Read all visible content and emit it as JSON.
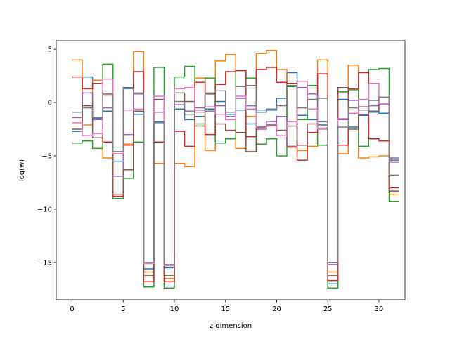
{
  "chart_data": {
    "type": "line",
    "step": "post",
    "xlabel": "z dimension",
    "ylabel": "log(w)",
    "xlim": [
      -1.55,
      32.55
    ],
    "ylim": [
      -18.5,
      5.8
    ],
    "xticks": [
      0,
      5,
      10,
      15,
      20,
      25,
      30
    ],
    "yticks": [
      5,
      0,
      -5,
      -10,
      -15
    ],
    "ytick_labels": [
      "5",
      "0",
      "−5",
      "−10",
      "−15"
    ],
    "grid": false,
    "legend": "none",
    "x": [
      0,
      1,
      2,
      3,
      4,
      5,
      6,
      7,
      8,
      9,
      10,
      11,
      12,
      13,
      14,
      15,
      16,
      17,
      18,
      19,
      20,
      21,
      22,
      23,
      24,
      25,
      26,
      27,
      28,
      29,
      30,
      31
    ],
    "series": [
      {
        "color": "#1f77b4",
        "values": [
          -2.7,
          2.4,
          -1.5,
          -0.8,
          -5.5,
          1.4,
          -1.1,
          -15.6,
          -1.8,
          -15.5,
          -0.6,
          -1.6,
          -1.3,
          -0.6,
          0.1,
          -1.1,
          -0.7,
          -2.0,
          -0.9,
          -0.7,
          0.4,
          2.8,
          -1.2,
          -1.6,
          -2.1,
          -17.0,
          0.3,
          -2.3,
          -1.2,
          -0.9,
          -1.0,
          -5.4
        ]
      },
      {
        "color": "#ff7f0e",
        "values": [
          4.0,
          -2.1,
          2.1,
          -5.2,
          -4.8,
          -3.9,
          4.8,
          -15.9,
          -5.7,
          -16.5,
          -5.7,
          -6.0,
          2.3,
          -4.5,
          3.9,
          4.5,
          -4.3,
          -1.3,
          4.6,
          4.9,
          3.1,
          -4.2,
          -4.5,
          -4.1,
          4.0,
          -15.9,
          -4.8,
          3.5,
          -5.2,
          -5.1,
          -5.0,
          -8.6
        ]
      },
      {
        "color": "#2ca02c",
        "values": [
          -3.8,
          -3.6,
          -4.3,
          3.6,
          -9.0,
          -7.1,
          -3.7,
          -17.3,
          3.3,
          -17.4,
          2.4,
          3.4,
          -2.2,
          2.3,
          -3.8,
          -3.4,
          3.0,
          2.3,
          -3.9,
          -3.4,
          -5.0,
          1.5,
          -1.6,
          1.6,
          -4.0,
          -17.4,
          1.0,
          1.2,
          -4.1,
          3.1,
          3.2,
          -9.3
        ]
      },
      {
        "color": "#d62728",
        "values": [
          2.4,
          1.3,
          1.8,
          -3.7,
          -8.8,
          -4.0,
          2.9,
          -16.8,
          -3.7,
          -16.8,
          -2.7,
          -4.1,
          1.9,
          -3.0,
          1.7,
          2.9,
          3.0,
          -3.2,
          3.1,
          3.3,
          1.9,
          1.8,
          -5.4,
          -2.8,
          2.7,
          -16.7,
          -4.0,
          1.3,
          2.8,
          -3.4,
          -3.6,
          -8.0
        ]
      },
      {
        "color": "#9467bd",
        "values": [
          -1.4,
          0.9,
          -1.6,
          -0.5,
          -6.9,
          -3.0,
          0.8,
          -15.1,
          -0.9,
          -15.3,
          -0.2,
          -0.8,
          -0.5,
          -0.8,
          -0.3,
          -1.3,
          0.4,
          -0.3,
          -2.5,
          -2.2,
          -1.3,
          -4.1,
          1.4,
          0.8,
          -1.8,
          -15.2,
          -1.6,
          0.2,
          -1.1,
          -0.3,
          -0.2,
          -5.2
        ]
      },
      {
        "color": "#8c564b",
        "values": [
          -2.5,
          -0.3,
          -3.3,
          0.7,
          -8.6,
          -6.3,
          -0.8,
          -16.2,
          0.3,
          -16.2,
          0.9,
          0.1,
          -2.0,
          0.8,
          -2.0,
          -2.6,
          -2.8,
          -4.6,
          -2.3,
          -2.1,
          -2.6,
          -2.2,
          -4.0,
          -2.0,
          -2.4,
          -16.2,
          1.4,
          -2.5,
          -0.4,
          -0.8,
          0.5,
          -8.3
        ]
      },
      {
        "color": "#e377c2",
        "values": [
          -1.9,
          -3.1,
          -2.9,
          2.2,
          -4.8,
          -0.7,
          -0.6,
          -15.1,
          0.6,
          -15.3,
          1.3,
          1.4,
          -0.9,
          -0.4,
          -1.1,
          -1.6,
          0.6,
          -0.6,
          -2.4,
          -1.8,
          -3.1,
          -1.8,
          2.0,
          -0.6,
          -2.5,
          -15.0,
          -1.5,
          -1.0,
          0.3,
          1.8,
          -0.1,
          -5.6
        ]
      },
      {
        "color": "#7f7f7f",
        "values": [
          -0.9,
          -0.5,
          -1.4,
          0.8,
          -4.6,
          1.3,
          0.9,
          -15.0,
          -1.9,
          -15.2,
          0.1,
          -1.1,
          -0.7,
          0.9,
          1.1,
          -0.9,
          1.5,
          1.6,
          -0.7,
          -0.6,
          -0.3,
          1.6,
          -0.5,
          0.3,
          0.4,
          -15.0,
          -2.3,
          -0.5,
          -0.7,
          0.2,
          0.5,
          -6.8
        ]
      }
    ]
  }
}
